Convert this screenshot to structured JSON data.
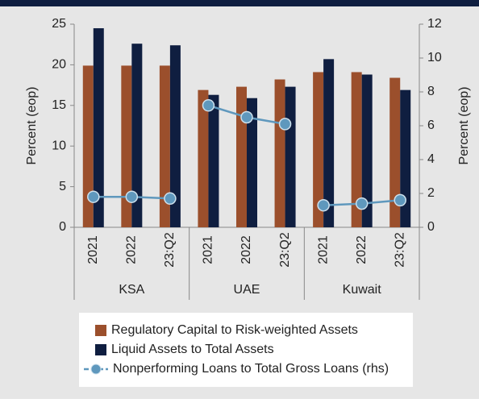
{
  "chart_data": {
    "type": "bar",
    "categories": [
      "2021",
      "2022",
      "23:Q2",
      "2021",
      "2022",
      "23:Q2",
      "2021",
      "2022",
      "23:Q2"
    ],
    "groups": [
      {
        "name": "KSA",
        "size": 3
      },
      {
        "name": "UAE",
        "size": 3
      },
      {
        "name": "Kuwait",
        "size": 3
      }
    ],
    "ylabel": "Percent (eop)",
    "y2label": "Percent (eop)",
    "ylim": [
      0,
      25
    ],
    "yticks": [
      0,
      5,
      10,
      15,
      20,
      25
    ],
    "y2lim": [
      0,
      12
    ],
    "y2ticks": [
      0,
      2,
      4,
      6,
      8,
      10,
      12
    ],
    "legend": "bottom",
    "series": [
      {
        "name": "Regulatory Capital to Risk-weighted Assets",
        "color": "#9b4f2c",
        "values": [
          19.9,
          19.9,
          19.9,
          16.9,
          17.3,
          18.2,
          19.1,
          19.1,
          18.4
        ]
      },
      {
        "name": "Liquid Assets to Total Assets",
        "color": "#0f1e40",
        "values": [
          24.5,
          22.6,
          22.4,
          16.3,
          15.9,
          17.3,
          20.7,
          18.8,
          16.9
        ]
      },
      {
        "name": "Nonperforming Loans to Total Gross Loans (rhs)",
        "color": "#5f98bd",
        "type": "line",
        "axis": "y2",
        "values": [
          1.8,
          1.8,
          1.7,
          7.2,
          6.5,
          6.1,
          1.3,
          1.4,
          1.6
        ]
      }
    ]
  }
}
